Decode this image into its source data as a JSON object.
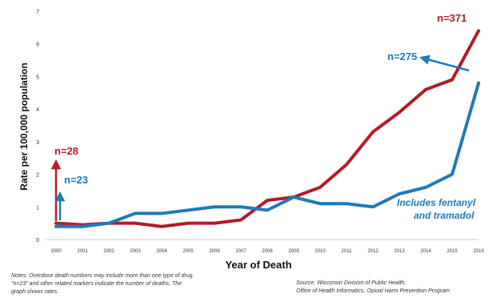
{
  "chart_data": {
    "type": "line",
    "title": "",
    "xlabel": "Year of Death",
    "ylabel": "Rate per 100,000 population",
    "ylim": [
      0,
      7
    ],
    "yticks": [
      0,
      1,
      2,
      3,
      4,
      5,
      6,
      7
    ],
    "grid": false,
    "legend": "none",
    "categories": [
      "2000",
      "2001",
      "2002",
      "2003",
      "2004",
      "2005",
      "2006",
      "2007",
      "2008",
      "2009",
      "2010",
      "2011",
      "2012",
      "2013",
      "2014",
      "2015",
      "2016"
    ],
    "series": [
      {
        "color": "#b01c2a",
        "values": [
          0.5,
          0.45,
          0.5,
          0.5,
          0.4,
          0.5,
          0.5,
          0.6,
          1.2,
          1.3,
          1.6,
          2.3,
          3.3,
          3.9,
          4.6,
          4.9,
          6.4
        ]
      },
      {
        "color": "#1f7ab8",
        "values": [
          0.4,
          0.4,
          0.5,
          0.8,
          0.8,
          0.9,
          1.0,
          1.0,
          0.9,
          1.3,
          1.1,
          1.1,
          1.0,
          1.4,
          1.6,
          2.0,
          4.8
        ]
      }
    ],
    "annotations": [
      {
        "text": "n=28",
        "color": "#b01c2a"
      },
      {
        "text": "n=23",
        "color": "#1f7ab8"
      },
      {
        "text": "n=371",
        "color": "#b01c2a"
      },
      {
        "text": "n=275",
        "color": "#1f7ab8"
      },
      {
        "text": "Includes fentanyl",
        "color": "#1f7ab8"
      },
      {
        "text": "and tramadol",
        "color": "#1f7ab8"
      }
    ]
  },
  "notes": {
    "left": "Notes: Overdose death numbers may include more than one type of drug. \"n=23\" and other related markers indicate the number of deaths. The graph shows rates.",
    "source_line1": "Source: Wisconsin Division of Public Health,",
    "source_line2": "Office of Health Informatics, Opioid Harm Prevention Program"
  }
}
